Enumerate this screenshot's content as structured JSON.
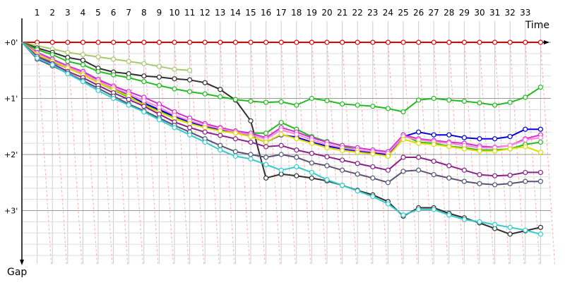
{
  "chart_data": {
    "type": "line",
    "title": "",
    "xlabel": "Time",
    "ylabel": "Gap",
    "xlim": [
      0,
      34
    ],
    "ylim_seconds": [
      0,
      3.8
    ],
    "x_tick_labels": [
      "1",
      "2",
      "3",
      "4",
      "5",
      "6",
      "7",
      "8",
      "9",
      "10",
      "11",
      "12",
      "13",
      "14",
      "15",
      "16",
      "17",
      "18",
      "19",
      "20",
      "21",
      "22",
      "23",
      "24",
      "25",
      "26",
      "27",
      "28",
      "29",
      "30",
      "31",
      "32",
      "33"
    ],
    "y_tick_labels": [
      {
        "value": 0,
        "label": "+0'"
      },
      {
        "value": 1,
        "label": "+1'"
      },
      {
        "value": 2,
        "label": "+2'"
      },
      {
        "value": 3,
        "label": "+3'"
      }
    ],
    "grid": true,
    "series": [
      {
        "color": "#e00000",
        "stroke": 2,
        "x": [
          0,
          1,
          2,
          3,
          4,
          5,
          6,
          7,
          8,
          9,
          10,
          11,
          12,
          13,
          14,
          15,
          16,
          17,
          18,
          19,
          20,
          21,
          22,
          23,
          24,
          25,
          26,
          27,
          28,
          29,
          30,
          31,
          32,
          33,
          34
        ],
        "values": [
          0,
          0,
          0,
          0,
          0,
          0,
          0,
          0,
          0,
          0,
          0,
          0,
          0,
          0,
          0,
          0,
          0,
          0,
          0,
          0,
          0,
          0,
          0,
          0,
          0,
          0,
          0,
          0,
          0,
          0,
          0,
          0,
          0,
          0,
          0
        ]
      },
      {
        "color": "#a8c870",
        "stroke": 2,
        "x": [
          0,
          1,
          2,
          3,
          4,
          5,
          6,
          7,
          8,
          9,
          10,
          11
        ],
        "values": [
          0,
          0.06,
          0.12,
          0.18,
          0.22,
          0.26,
          0.3,
          0.34,
          0.38,
          0.43,
          0.48,
          0.5
        ]
      },
      {
        "color": "#303030",
        "stroke": 2,
        "x": [
          0,
          1,
          2,
          3,
          4,
          5,
          6,
          7,
          8,
          9,
          10,
          11,
          12,
          13,
          14,
          15,
          16,
          17,
          18,
          19,
          20,
          21,
          22,
          23,
          24,
          25,
          26,
          27,
          28,
          29,
          30,
          31,
          32,
          33,
          34
        ],
        "values": [
          0,
          0.1,
          0.18,
          0.27,
          0.32,
          0.46,
          0.53,
          0.56,
          0.6,
          0.62,
          0.65,
          0.67,
          0.72,
          0.84,
          1.03,
          1.4,
          2.42,
          2.35,
          2.38,
          2.42,
          2.47,
          2.55,
          2.64,
          2.72,
          2.84,
          3.1,
          2.95,
          2.95,
          3.05,
          3.13,
          3.22,
          3.32,
          3.42,
          3.36,
          3.3
        ]
      },
      {
        "color": "#22bb22",
        "stroke": 2,
        "x": [
          0,
          1,
          2,
          3,
          4,
          5,
          6,
          7,
          8,
          9,
          10,
          11,
          12,
          13,
          14,
          15,
          16,
          17,
          18,
          19,
          20,
          21,
          22,
          23,
          24,
          25,
          26,
          27,
          28,
          29,
          30,
          31,
          32,
          33,
          34
        ],
        "values": [
          0,
          0.13,
          0.22,
          0.34,
          0.4,
          0.52,
          0.58,
          0.63,
          0.7,
          0.77,
          0.83,
          0.88,
          0.92,
          0.97,
          1.02,
          1.05,
          1.07,
          1.06,
          1.12,
          1.0,
          1.04,
          1.1,
          1.12,
          1.14,
          1.18,
          1.24,
          1.03,
          1.0,
          1.03,
          1.05,
          1.08,
          1.12,
          1.07,
          0.98,
          0.8
        ]
      },
      {
        "color": "#22bb22",
        "stroke": 2,
        "x": [
          0,
          1,
          2,
          3,
          4,
          5,
          6,
          7,
          8,
          9,
          10,
          11,
          12,
          13,
          14,
          15,
          16,
          17,
          18,
          19,
          20,
          21,
          22,
          23,
          24,
          25,
          26,
          27,
          28,
          29,
          30,
          31,
          32,
          33,
          34
        ],
        "values": [
          0,
          0.2,
          0.32,
          0.45,
          0.58,
          0.72,
          0.85,
          0.98,
          1.1,
          1.22,
          1.33,
          1.42,
          1.5,
          1.55,
          1.58,
          1.62,
          1.62,
          1.43,
          1.55,
          1.68,
          1.77,
          1.85,
          1.92,
          1.98,
          2.03,
          1.65,
          1.78,
          1.8,
          1.85,
          1.88,
          1.92,
          1.92,
          1.9,
          1.82,
          1.78
        ]
      },
      {
        "color": "#0000dd",
        "stroke": 2,
        "x": [
          0,
          1,
          2,
          3,
          4,
          5,
          6,
          7,
          8,
          9,
          10,
          11,
          12,
          13,
          14,
          15,
          16,
          17,
          18,
          19,
          20,
          21,
          22,
          23,
          24,
          25,
          26,
          27,
          28,
          29,
          30,
          31,
          32,
          33,
          34
        ],
        "values": [
          0,
          0.22,
          0.35,
          0.46,
          0.55,
          0.68,
          0.82,
          0.95,
          1.08,
          1.2,
          1.32,
          1.42,
          1.5,
          1.56,
          1.6,
          1.68,
          1.78,
          1.65,
          1.69,
          1.78,
          1.85,
          1.9,
          1.94,
          1.97,
          2.0,
          1.68,
          1.6,
          1.65,
          1.65,
          1.7,
          1.72,
          1.72,
          1.68,
          1.55,
          1.55
        ]
      },
      {
        "color": "#cc33cc",
        "stroke": 2,
        "x": [
          0,
          1,
          2,
          3,
          4,
          5,
          6,
          7,
          8,
          9,
          10,
          11,
          12,
          13,
          14,
          15,
          16,
          17,
          18,
          19,
          20,
          21,
          22,
          23,
          24,
          25,
          26,
          27,
          28,
          29,
          30,
          31,
          32,
          33,
          34
        ],
        "values": [
          0,
          0.18,
          0.3,
          0.42,
          0.52,
          0.66,
          0.78,
          0.88,
          0.98,
          1.1,
          1.24,
          1.35,
          1.45,
          1.52,
          1.58,
          1.62,
          1.7,
          1.52,
          1.6,
          1.7,
          1.78,
          1.84,
          1.88,
          1.92,
          1.95,
          1.65,
          1.72,
          1.75,
          1.78,
          1.8,
          1.85,
          1.87,
          1.84,
          1.72,
          1.65
        ]
      },
      {
        "color": "#ff88dd",
        "stroke": 2,
        "x": [
          0,
          1,
          2,
          3,
          4,
          5,
          6,
          7,
          8,
          9,
          10,
          11,
          12,
          13,
          14,
          15,
          16,
          17,
          18,
          19,
          20,
          21,
          22,
          23,
          24,
          25,
          26,
          27,
          28,
          29,
          30,
          31,
          32,
          33,
          34
        ],
        "values": [
          0,
          0.2,
          0.33,
          0.44,
          0.55,
          0.69,
          0.81,
          0.92,
          1.04,
          1.16,
          1.3,
          1.4,
          1.48,
          1.54,
          1.6,
          1.65,
          1.73,
          1.56,
          1.64,
          1.74,
          1.82,
          1.88,
          1.92,
          1.95,
          1.98,
          1.68,
          1.74,
          1.77,
          1.8,
          1.84,
          1.88,
          1.88,
          1.84,
          1.74,
          1.7
        ]
      },
      {
        "color": "#dddd00",
        "stroke": 2,
        "x": [
          0,
          1,
          2,
          3,
          4,
          5,
          6,
          7,
          8,
          9,
          10,
          11,
          12,
          13,
          14,
          15,
          16,
          17,
          18,
          19,
          20,
          21,
          22,
          23,
          24,
          25,
          26,
          27,
          28,
          29,
          30,
          31,
          32,
          33,
          34
        ],
        "values": [
          0,
          0.22,
          0.34,
          0.46,
          0.58,
          0.72,
          0.84,
          0.96,
          1.12,
          1.24,
          1.36,
          1.45,
          1.52,
          1.58,
          1.62,
          1.68,
          1.78,
          1.64,
          1.72,
          1.8,
          1.88,
          1.93,
          1.96,
          1.99,
          2.03,
          1.73,
          1.8,
          1.82,
          1.86,
          1.9,
          1.94,
          1.94,
          1.9,
          1.86,
          1.96
        ]
      },
      {
        "color": "#882288",
        "stroke": 2,
        "x": [
          0,
          1,
          2,
          3,
          4,
          5,
          6,
          7,
          8,
          9,
          10,
          11,
          12,
          13,
          14,
          15,
          16,
          17,
          18,
          19,
          20,
          21,
          22,
          23,
          24,
          25,
          26,
          27,
          28,
          29,
          30,
          31,
          32,
          33,
          34
        ],
        "values": [
          0,
          0.25,
          0.38,
          0.52,
          0.63,
          0.77,
          0.9,
          1.02,
          1.14,
          1.28,
          1.42,
          1.52,
          1.6,
          1.66,
          1.72,
          1.78,
          1.86,
          1.84,
          1.92,
          1.98,
          2.04,
          2.1,
          2.16,
          2.22,
          2.28,
          2.05,
          2.05,
          2.12,
          2.2,
          2.28,
          2.36,
          2.38,
          2.37,
          2.32,
          2.32
        ]
      },
      {
        "color": "#555577",
        "stroke": 2,
        "x": [
          0,
          1,
          2,
          3,
          4,
          5,
          6,
          7,
          8,
          9,
          10,
          11,
          12,
          13,
          14,
          15,
          16,
          17,
          18,
          19,
          20,
          21,
          22,
          23,
          24,
          25,
          26,
          27,
          28,
          29,
          30,
          31,
          32,
          33,
          34
        ],
        "values": [
          0,
          0.3,
          0.42,
          0.55,
          0.68,
          0.82,
          0.96,
          1.1,
          1.22,
          1.35,
          1.48,
          1.6,
          1.72,
          1.84,
          1.95,
          2.0,
          2.05,
          2.0,
          2.05,
          2.15,
          2.2,
          2.28,
          2.35,
          2.42,
          2.5,
          2.3,
          2.28,
          2.36,
          2.42,
          2.48,
          2.52,
          2.54,
          2.52,
          2.48,
          2.48
        ]
      },
      {
        "color": "#33cccc",
        "stroke": 2,
        "x": [
          0,
          1,
          2,
          3,
          4,
          5,
          6,
          7,
          8,
          9,
          10,
          11,
          12,
          13,
          14,
          15,
          16,
          17,
          18,
          19,
          20,
          21,
          22,
          23,
          24,
          25,
          26,
          27,
          28,
          29,
          30,
          31,
          32,
          33,
          34
        ],
        "values": [
          0,
          0.28,
          0.4,
          0.56,
          0.7,
          0.86,
          1.0,
          1.12,
          1.24,
          1.38,
          1.52,
          1.65,
          1.78,
          1.92,
          2.03,
          2.08,
          2.18,
          2.28,
          2.22,
          2.32,
          2.45,
          2.55,
          2.65,
          2.75,
          2.88,
          3.08,
          2.98,
          2.98,
          3.08,
          3.16,
          3.2,
          3.25,
          3.3,
          3.35,
          3.42
        ]
      }
    ]
  }
}
